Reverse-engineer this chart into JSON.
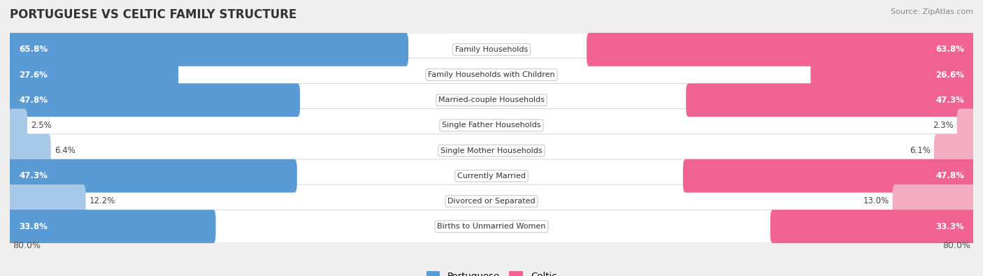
{
  "title": "PORTUGUESE VS CELTIC FAMILY STRUCTURE",
  "source": "Source: ZipAtlas.com",
  "categories": [
    "Family Households",
    "Family Households with Children",
    "Married-couple Households",
    "Single Father Households",
    "Single Mother Households",
    "Currently Married",
    "Divorced or Separated",
    "Births to Unmarried Women"
  ],
  "portuguese_values": [
    65.8,
    27.6,
    47.8,
    2.5,
    6.4,
    47.3,
    12.2,
    33.8
  ],
  "celtic_values": [
    63.8,
    26.6,
    47.3,
    2.3,
    6.1,
    47.8,
    13.0,
    33.3
  ],
  "portuguese_labels": [
    "65.8%",
    "27.6%",
    "47.8%",
    "2.5%",
    "6.4%",
    "47.3%",
    "12.2%",
    "33.8%"
  ],
  "celtic_labels": [
    "63.8%",
    "26.6%",
    "47.3%",
    "2.3%",
    "6.1%",
    "47.8%",
    "13.0%",
    "33.3%"
  ],
  "portuguese_color_dark": "#5b9bd5",
  "portuguese_color_light": "#a8c8e8",
  "celtic_color_dark": "#f06292",
  "celtic_color_light": "#f4aec4",
  "max_value": 80.0,
  "axis_label_left": "80.0%",
  "axis_label_right": "80.0%",
  "bg_color": "#efefef",
  "row_bg_color": "#ffffff",
  "legend_portuguese": "Portuguese",
  "legend_celtic": "Celtic",
  "threshold_dark": 15.0
}
